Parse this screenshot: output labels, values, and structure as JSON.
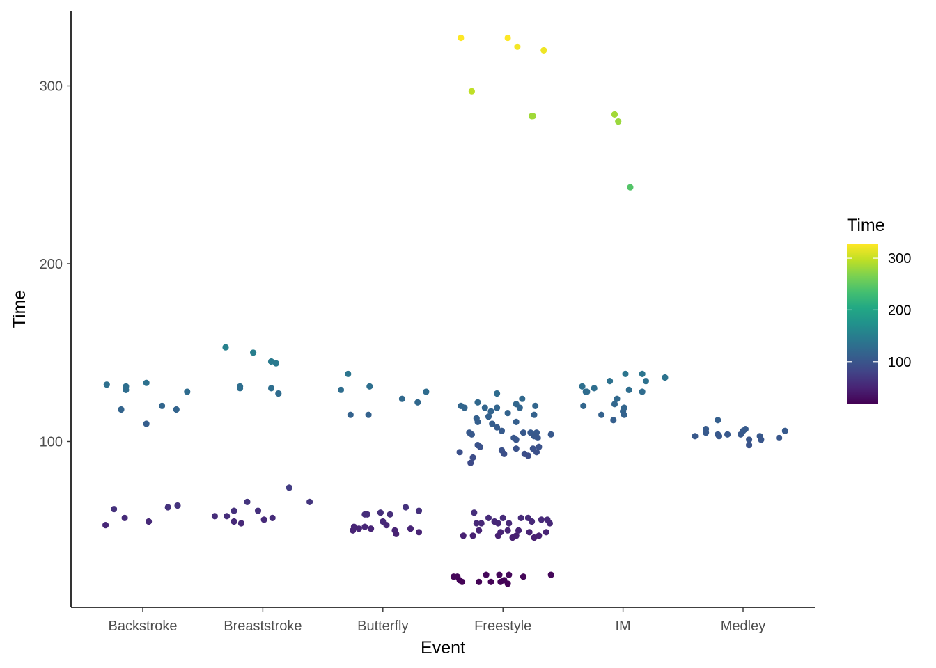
{
  "chart_data": {
    "type": "scatter",
    "title": "",
    "xlabel": "Event",
    "ylabel": "Time",
    "categories": [
      "Backstroke",
      "Breaststroke",
      "Butterfly",
      "Freestyle",
      "IM",
      "Medley"
    ],
    "yticks": [
      100,
      200,
      300
    ],
    "ylim": [
      8,
      336
    ],
    "grid": false,
    "color_scale": {
      "name": "viridis",
      "title": "Time",
      "range": [
        19,
        327
      ],
      "ticks": [
        100,
        200,
        300
      ],
      "legend_position": "right"
    },
    "points": [
      {
        "x": "Backstroke",
        "offset": -0.3,
        "y": 132
      },
      {
        "x": "Backstroke",
        "offset": -0.18,
        "y": 118
      },
      {
        "x": "Backstroke",
        "offset": -0.14,
        "y": 131
      },
      {
        "x": "Backstroke",
        "offset": -0.14,
        "y": 129
      },
      {
        "x": "Backstroke",
        "offset": 0.03,
        "y": 110
      },
      {
        "x": "Backstroke",
        "offset": 0.03,
        "y": 133
      },
      {
        "x": "Backstroke",
        "offset": 0.16,
        "y": 120
      },
      {
        "x": "Backstroke",
        "offset": 0.28,
        "y": 118
      },
      {
        "x": "Backstroke",
        "offset": 0.37,
        "y": 128
      },
      {
        "x": "Backstroke",
        "offset": -0.31,
        "y": 53
      },
      {
        "x": "Backstroke",
        "offset": -0.24,
        "y": 62
      },
      {
        "x": "Backstroke",
        "offset": -0.15,
        "y": 57
      },
      {
        "x": "Backstroke",
        "offset": 0.05,
        "y": 55
      },
      {
        "x": "Backstroke",
        "offset": 0.21,
        "y": 63
      },
      {
        "x": "Backstroke",
        "offset": 0.29,
        "y": 64
      },
      {
        "x": "Breaststroke",
        "offset": -0.31,
        "y": 153
      },
      {
        "x": "Breaststroke",
        "offset": -0.19,
        "y": 131
      },
      {
        "x": "Breaststroke",
        "offset": -0.19,
        "y": 130
      },
      {
        "x": "Breaststroke",
        "offset": -0.08,
        "y": 150
      },
      {
        "x": "Breaststroke",
        "offset": 0.07,
        "y": 145
      },
      {
        "x": "Breaststroke",
        "offset": 0.11,
        "y": 144
      },
      {
        "x": "Breaststroke",
        "offset": 0.07,
        "y": 130
      },
      {
        "x": "Breaststroke",
        "offset": 0.13,
        "y": 127
      },
      {
        "x": "Breaststroke",
        "offset": -0.4,
        "y": 58
      },
      {
        "x": "Breaststroke",
        "offset": -0.3,
        "y": 58
      },
      {
        "x": "Breaststroke",
        "offset": -0.24,
        "y": 61
      },
      {
        "x": "Breaststroke",
        "offset": -0.24,
        "y": 55
      },
      {
        "x": "Breaststroke",
        "offset": -0.18,
        "y": 54
      },
      {
        "x": "Breaststroke",
        "offset": -0.13,
        "y": 66
      },
      {
        "x": "Breaststroke",
        "offset": -0.04,
        "y": 61
      },
      {
        "x": "Breaststroke",
        "offset": 0.01,
        "y": 56
      },
      {
        "x": "Breaststroke",
        "offset": 0.08,
        "y": 57
      },
      {
        "x": "Breaststroke",
        "offset": 0.22,
        "y": 74
      },
      {
        "x": "Breaststroke",
        "offset": 0.39,
        "y": 66
      },
      {
        "x": "Butterfly",
        "offset": -0.35,
        "y": 129
      },
      {
        "x": "Butterfly",
        "offset": -0.29,
        "y": 138
      },
      {
        "x": "Butterfly",
        "offset": -0.27,
        "y": 115
      },
      {
        "x": "Butterfly",
        "offset": -0.11,
        "y": 131
      },
      {
        "x": "Butterfly",
        "offset": -0.12,
        "y": 115
      },
      {
        "x": "Butterfly",
        "offset": 0.16,
        "y": 124
      },
      {
        "x": "Butterfly",
        "offset": 0.29,
        "y": 122
      },
      {
        "x": "Butterfly",
        "offset": 0.36,
        "y": 128
      },
      {
        "x": "Butterfly",
        "offset": -0.25,
        "y": 50
      },
      {
        "x": "Butterfly",
        "offset": -0.24,
        "y": 52
      },
      {
        "x": "Butterfly",
        "offset": -0.2,
        "y": 51
      },
      {
        "x": "Butterfly",
        "offset": -0.15,
        "y": 59
      },
      {
        "x": "Butterfly",
        "offset": -0.13,
        "y": 59
      },
      {
        "x": "Butterfly",
        "offset": -0.15,
        "y": 52
      },
      {
        "x": "Butterfly",
        "offset": -0.1,
        "y": 51
      },
      {
        "x": "Butterfly",
        "offset": -0.02,
        "y": 60
      },
      {
        "x": "Butterfly",
        "offset": 0.0,
        "y": 55
      },
      {
        "x": "Butterfly",
        "offset": 0.03,
        "y": 53
      },
      {
        "x": "Butterfly",
        "offset": 0.06,
        "y": 59
      },
      {
        "x": "Butterfly",
        "offset": 0.1,
        "y": 50
      },
      {
        "x": "Butterfly",
        "offset": 0.11,
        "y": 48
      },
      {
        "x": "Butterfly",
        "offset": 0.19,
        "y": 63
      },
      {
        "x": "Butterfly",
        "offset": 0.23,
        "y": 51
      },
      {
        "x": "Butterfly",
        "offset": 0.3,
        "y": 61
      },
      {
        "x": "Butterfly",
        "offset": 0.3,
        "y": 49
      },
      {
        "x": "Freestyle",
        "offset": -0.35,
        "y": 327
      },
      {
        "x": "Freestyle",
        "offset": 0.04,
        "y": 327
      },
      {
        "x": "Freestyle",
        "offset": 0.12,
        "y": 322
      },
      {
        "x": "Freestyle",
        "offset": 0.34,
        "y": 320
      },
      {
        "x": "Freestyle",
        "offset": -0.26,
        "y": 297
      },
      {
        "x": "Freestyle",
        "offset": 0.24,
        "y": 283
      },
      {
        "x": "Freestyle",
        "offset": 0.25,
        "y": 283
      },
      {
        "x": "Freestyle",
        "offset": -0.35,
        "y": 120
      },
      {
        "x": "Freestyle",
        "offset": -0.32,
        "y": 119
      },
      {
        "x": "Freestyle",
        "offset": -0.21,
        "y": 122
      },
      {
        "x": "Freestyle",
        "offset": -0.15,
        "y": 119
      },
      {
        "x": "Freestyle",
        "offset": -0.1,
        "y": 117
      },
      {
        "x": "Freestyle",
        "offset": -0.05,
        "y": 119
      },
      {
        "x": "Freestyle",
        "offset": -0.05,
        "y": 127
      },
      {
        "x": "Freestyle",
        "offset": 0.04,
        "y": 116
      },
      {
        "x": "Freestyle",
        "offset": 0.11,
        "y": 121
      },
      {
        "x": "Freestyle",
        "offset": 0.14,
        "y": 119
      },
      {
        "x": "Freestyle",
        "offset": 0.16,
        "y": 124
      },
      {
        "x": "Freestyle",
        "offset": 0.26,
        "y": 115
      },
      {
        "x": "Freestyle",
        "offset": 0.27,
        "y": 120
      },
      {
        "x": "Freestyle",
        "offset": -0.22,
        "y": 113
      },
      {
        "x": "Freestyle",
        "offset": -0.21,
        "y": 111
      },
      {
        "x": "Freestyle",
        "offset": -0.12,
        "y": 114
      },
      {
        "x": "Freestyle",
        "offset": -0.09,
        "y": 110
      },
      {
        "x": "Freestyle",
        "offset": -0.05,
        "y": 108
      },
      {
        "x": "Freestyle",
        "offset": -0.01,
        "y": 106
      },
      {
        "x": "Freestyle",
        "offset": 0.11,
        "y": 111
      },
      {
        "x": "Freestyle",
        "offset": -0.28,
        "y": 105
      },
      {
        "x": "Freestyle",
        "offset": -0.26,
        "y": 104
      },
      {
        "x": "Freestyle",
        "offset": 0.17,
        "y": 105
      },
      {
        "x": "Freestyle",
        "offset": 0.23,
        "y": 105
      },
      {
        "x": "Freestyle",
        "offset": 0.28,
        "y": 105
      },
      {
        "x": "Freestyle",
        "offset": 0.4,
        "y": 104
      },
      {
        "x": "Freestyle",
        "offset": 0.09,
        "y": 102
      },
      {
        "x": "Freestyle",
        "offset": 0.11,
        "y": 101
      },
      {
        "x": "Freestyle",
        "offset": 0.26,
        "y": 103
      },
      {
        "x": "Freestyle",
        "offset": 0.29,
        "y": 102
      },
      {
        "x": "Freestyle",
        "offset": -0.21,
        "y": 98
      },
      {
        "x": "Freestyle",
        "offset": -0.19,
        "y": 97
      },
      {
        "x": "Freestyle",
        "offset": -0.36,
        "y": 94
      },
      {
        "x": "Freestyle",
        "offset": -0.25,
        "y": 91
      },
      {
        "x": "Freestyle",
        "offset": -0.27,
        "y": 88
      },
      {
        "x": "Freestyle",
        "offset": -0.01,
        "y": 95
      },
      {
        "x": "Freestyle",
        "offset": 0.01,
        "y": 93
      },
      {
        "x": "Freestyle",
        "offset": 0.11,
        "y": 96
      },
      {
        "x": "Freestyle",
        "offset": 0.18,
        "y": 93
      },
      {
        "x": "Freestyle",
        "offset": 0.21,
        "y": 92
      },
      {
        "x": "Freestyle",
        "offset": 0.25,
        "y": 96
      },
      {
        "x": "Freestyle",
        "offset": 0.28,
        "y": 94
      },
      {
        "x": "Freestyle",
        "offset": 0.3,
        "y": 97
      },
      {
        "x": "Freestyle",
        "offset": -0.24,
        "y": 60
      },
      {
        "x": "Freestyle",
        "offset": -0.22,
        "y": 54
      },
      {
        "x": "Freestyle",
        "offset": -0.18,
        "y": 54
      },
      {
        "x": "Freestyle",
        "offset": -0.12,
        "y": 57
      },
      {
        "x": "Freestyle",
        "offset": -0.07,
        "y": 55
      },
      {
        "x": "Freestyle",
        "offset": -0.04,
        "y": 54
      },
      {
        "x": "Freestyle",
        "offset": 0.0,
        "y": 57
      },
      {
        "x": "Freestyle",
        "offset": 0.05,
        "y": 54
      },
      {
        "x": "Freestyle",
        "offset": 0.15,
        "y": 57
      },
      {
        "x": "Freestyle",
        "offset": 0.21,
        "y": 57
      },
      {
        "x": "Freestyle",
        "offset": 0.24,
        "y": 55
      },
      {
        "x": "Freestyle",
        "offset": 0.32,
        "y": 56
      },
      {
        "x": "Freestyle",
        "offset": 0.37,
        "y": 56
      },
      {
        "x": "Freestyle",
        "offset": 0.39,
        "y": 54
      },
      {
        "x": "Freestyle",
        "offset": -0.33,
        "y": 47
      },
      {
        "x": "Freestyle",
        "offset": -0.25,
        "y": 47
      },
      {
        "x": "Freestyle",
        "offset": -0.2,
        "y": 50
      },
      {
        "x": "Freestyle",
        "offset": -0.04,
        "y": 47
      },
      {
        "x": "Freestyle",
        "offset": -0.02,
        "y": 49
      },
      {
        "x": "Freestyle",
        "offset": 0.04,
        "y": 50
      },
      {
        "x": "Freestyle",
        "offset": 0.08,
        "y": 46
      },
      {
        "x": "Freestyle",
        "offset": 0.11,
        "y": 47
      },
      {
        "x": "Freestyle",
        "offset": 0.13,
        "y": 50
      },
      {
        "x": "Freestyle",
        "offset": 0.22,
        "y": 49
      },
      {
        "x": "Freestyle",
        "offset": 0.26,
        "y": 46
      },
      {
        "x": "Freestyle",
        "offset": 0.3,
        "y": 47
      },
      {
        "x": "Freestyle",
        "offset": 0.36,
        "y": 49
      },
      {
        "x": "Freestyle",
        "offset": -0.41,
        "y": 24
      },
      {
        "x": "Freestyle",
        "offset": -0.38,
        "y": 24
      },
      {
        "x": "Freestyle",
        "offset": -0.36,
        "y": 22
      },
      {
        "x": "Freestyle",
        "offset": -0.34,
        "y": 21
      },
      {
        "x": "Freestyle",
        "offset": -0.2,
        "y": 21
      },
      {
        "x": "Freestyle",
        "offset": -0.14,
        "y": 25
      },
      {
        "x": "Freestyle",
        "offset": -0.1,
        "y": 21
      },
      {
        "x": "Freestyle",
        "offset": -0.03,
        "y": 25
      },
      {
        "x": "Freestyle",
        "offset": -0.02,
        "y": 21
      },
      {
        "x": "Freestyle",
        "offset": 0.01,
        "y": 22
      },
      {
        "x": "Freestyle",
        "offset": 0.04,
        "y": 20
      },
      {
        "x": "Freestyle",
        "offset": 0.05,
        "y": 25
      },
      {
        "x": "Freestyle",
        "offset": 0.17,
        "y": 24
      },
      {
        "x": "Freestyle",
        "offset": 0.4,
        "y": 25
      },
      {
        "x": "IM",
        "offset": -0.07,
        "y": 284
      },
      {
        "x": "IM",
        "offset": -0.04,
        "y": 280
      },
      {
        "x": "IM",
        "offset": 0.06,
        "y": 243
      },
      {
        "x": "IM",
        "offset": -0.34,
        "y": 131
      },
      {
        "x": "IM",
        "offset": -0.31,
        "y": 128
      },
      {
        "x": "IM",
        "offset": -0.24,
        "y": 130
      },
      {
        "x": "IM",
        "offset": -0.11,
        "y": 134
      },
      {
        "x": "IM",
        "offset": 0.02,
        "y": 138
      },
      {
        "x": "IM",
        "offset": 0.16,
        "y": 138
      },
      {
        "x": "IM",
        "offset": 0.19,
        "y": 134
      },
      {
        "x": "IM",
        "offset": 0.35,
        "y": 136
      },
      {
        "x": "IM",
        "offset": -0.33,
        "y": 120
      },
      {
        "x": "IM",
        "offset": -0.3,
        "y": 128
      },
      {
        "x": "IM",
        "offset": -0.18,
        "y": 115
      },
      {
        "x": "IM",
        "offset": -0.05,
        "y": 124
      },
      {
        "x": "IM",
        "offset": -0.07,
        "y": 121
      },
      {
        "x": "IM",
        "offset": -0.08,
        "y": 112
      },
      {
        "x": "IM",
        "offset": 0.01,
        "y": 119
      },
      {
        "x": "IM",
        "offset": 0.0,
        "y": 117
      },
      {
        "x": "IM",
        "offset": 0.01,
        "y": 115
      },
      {
        "x": "IM",
        "offset": 0.05,
        "y": 129
      },
      {
        "x": "IM",
        "offset": 0.16,
        "y": 128
      },
      {
        "x": "Medley",
        "offset": -0.4,
        "y": 103
      },
      {
        "x": "Medley",
        "offset": -0.31,
        "y": 107
      },
      {
        "x": "Medley",
        "offset": -0.31,
        "y": 105
      },
      {
        "x": "Medley",
        "offset": -0.21,
        "y": 112
      },
      {
        "x": "Medley",
        "offset": -0.21,
        "y": 104
      },
      {
        "x": "Medley",
        "offset": -0.2,
        "y": 103
      },
      {
        "x": "Medley",
        "offset": -0.13,
        "y": 104
      },
      {
        "x": "Medley",
        "offset": -0.02,
        "y": 104
      },
      {
        "x": "Medley",
        "offset": 0.0,
        "y": 106
      },
      {
        "x": "Medley",
        "offset": 0.02,
        "y": 107
      },
      {
        "x": "Medley",
        "offset": 0.05,
        "y": 101
      },
      {
        "x": "Medley",
        "offset": 0.05,
        "y": 98
      },
      {
        "x": "Medley",
        "offset": 0.14,
        "y": 103
      },
      {
        "x": "Medley",
        "offset": 0.15,
        "y": 101
      },
      {
        "x": "Medley",
        "offset": 0.3,
        "y": 102
      },
      {
        "x": "Medley",
        "offset": 0.35,
        "y": 106
      }
    ]
  }
}
